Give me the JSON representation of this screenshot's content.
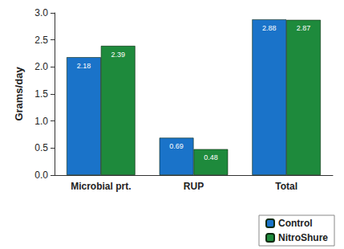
{
  "chart_data": {
    "type": "bar",
    "y_label": "Grams/day",
    "categories": [
      "Microbial prt.",
      "RUP",
      "Total"
    ],
    "series": [
      {
        "name": "Control",
        "color": "#1a73c9",
        "values": [
          2.18,
          0.69,
          2.88
        ]
      },
      {
        "name": "NitroShure",
        "color": "#1e8a3c",
        "values": [
          2.39,
          0.48,
          2.87
        ]
      }
    ],
    "ylim": [
      0,
      3
    ],
    "yticks": [
      {
        "value": 0,
        "label": "0.0"
      },
      0.5,
      {
        "value": 1,
        "label": "1.0"
      },
      1.5,
      {
        "value": 2,
        "label": "2.0"
      },
      2.5,
      {
        "value": 3,
        "label": "3.0"
      }
    ],
    "grid": false,
    "data_labels": true,
    "legend": "bottom-right"
  }
}
